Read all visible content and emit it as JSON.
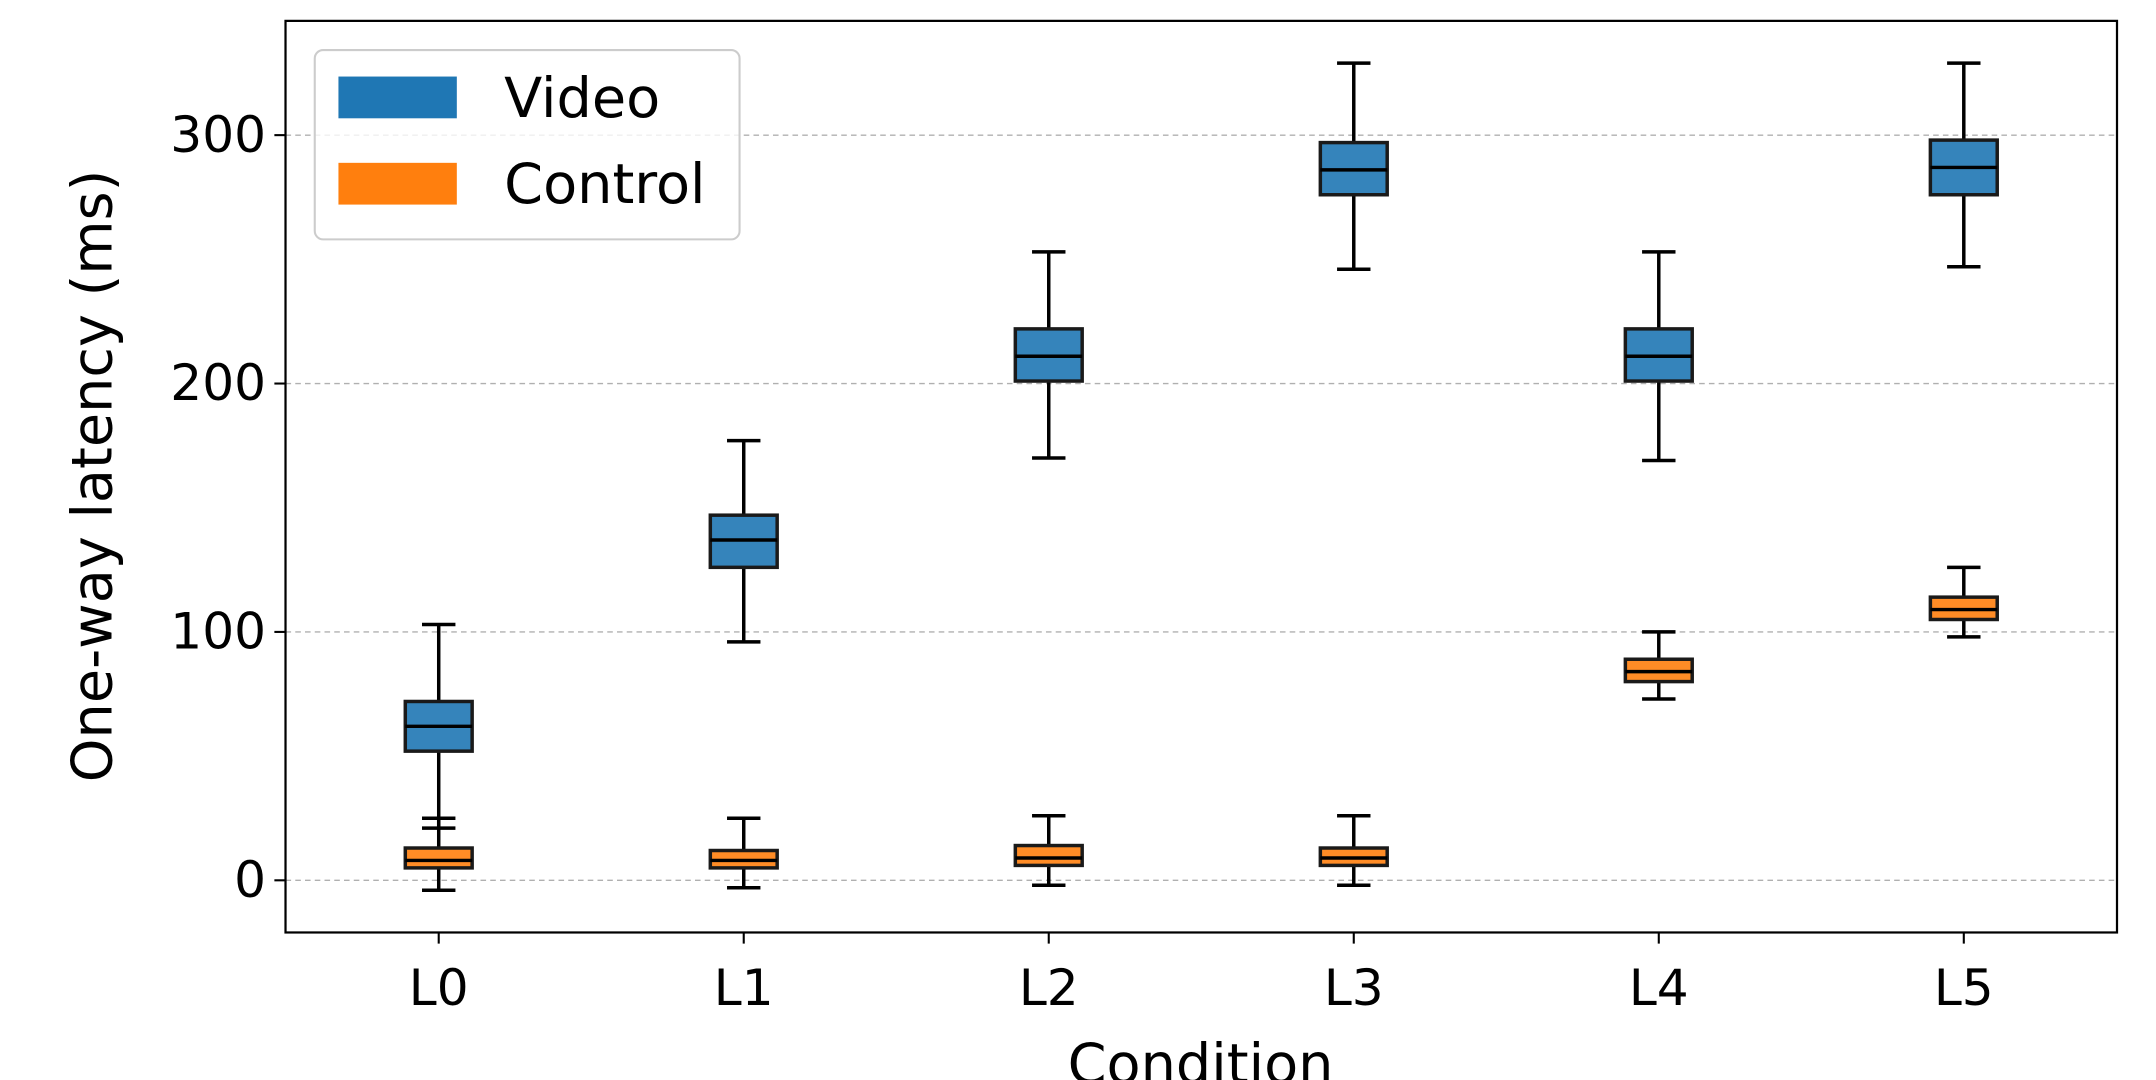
{
  "chart_data": {
    "type": "box",
    "title": "",
    "xlabel": "Condition",
    "ylabel": "One-way latency (ms)",
    "ylim": [
      -21,
      346
    ],
    "yticks": [
      0,
      100,
      200,
      300
    ],
    "categories": [
      "L0",
      "L1",
      "L2",
      "L3",
      "L4",
      "L5"
    ],
    "grid": "y-dashed",
    "legend_position": "top-left",
    "series": [
      {
        "name": "Video",
        "color": "#1f77b4",
        "boxes": [
          {
            "whislo": 21,
            "q1": 52,
            "med": 62,
            "q3": 72,
            "whishi": 103
          },
          {
            "whislo": 96,
            "q1": 126,
            "med": 137,
            "q3": 147,
            "whishi": 177
          },
          {
            "whislo": 170,
            "q1": 201,
            "med": 211,
            "q3": 222,
            "whishi": 253
          },
          {
            "whislo": 246,
            "q1": 276,
            "med": 286,
            "q3": 297,
            "whishi": 329
          },
          {
            "whislo": 169,
            "q1": 201,
            "med": 211,
            "q3": 222,
            "whishi": 253
          },
          {
            "whislo": 247,
            "q1": 276,
            "med": 287,
            "q3": 298,
            "whishi": 329
          }
        ]
      },
      {
        "name": "Control",
        "color": "#ff7f0e",
        "boxes": [
          {
            "whislo": -4,
            "q1": 5,
            "med": 8,
            "q3": 13,
            "whishi": 25
          },
          {
            "whislo": -3,
            "q1": 5,
            "med": 8,
            "q3": 12,
            "whishi": 25
          },
          {
            "whislo": -2,
            "q1": 6,
            "med": 9,
            "q3": 14,
            "whishi": 26
          },
          {
            "whislo": -2,
            "q1": 6,
            "med": 9,
            "q3": 13,
            "whishi": 26
          },
          {
            "whislo": 73,
            "q1": 80,
            "med": 84,
            "q3": 89,
            "whishi": 100
          },
          {
            "whislo": 98,
            "q1": 105,
            "med": 109,
            "q3": 114,
            "whishi": 126
          }
        ]
      }
    ]
  }
}
